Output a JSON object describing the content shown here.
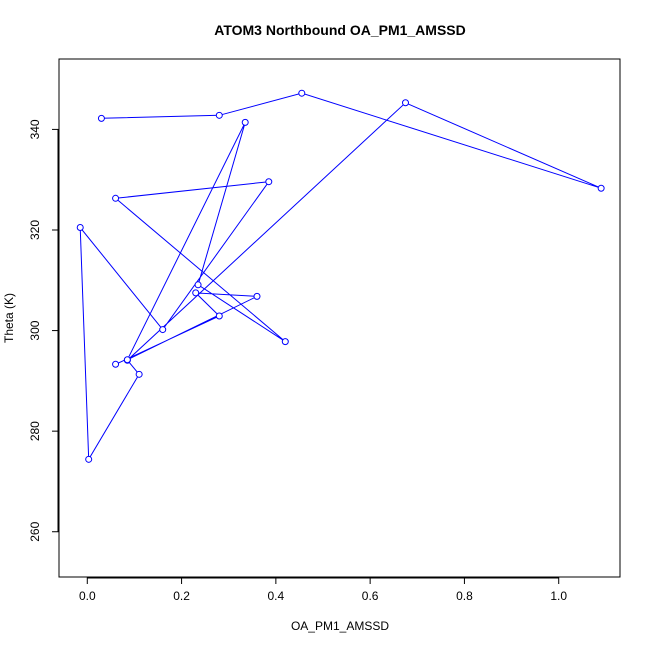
{
  "chart_data": {
    "type": "line",
    "title": "ATOM3 Northbound OA_PM1_AMSSD",
    "xlabel": "OA_PM1_AMSSD",
    "ylabel": "Theta (K)",
    "xlim": [
      -0.06,
      1.13
    ],
    "ylim": [
      251,
      354
    ],
    "x_ticks": [
      0.0,
      0.2,
      0.4,
      0.6,
      0.8,
      1.0
    ],
    "x_tick_labels": [
      "0.0",
      "0.2",
      "0.4",
      "0.6",
      "0.8",
      "1.0"
    ],
    "y_ticks": [
      260,
      280,
      300,
      320,
      340
    ],
    "y_tick_labels": [
      "260",
      "280",
      "300",
      "320",
      "340"
    ],
    "grid": false,
    "series": [
      {
        "color": "#0000ff",
        "x": [
          0.03,
          0.28,
          0.455,
          1.09,
          0.675,
          0.085,
          0.11,
          0.003,
          -0.015,
          0.16,
          0.385,
          0.06,
          0.42,
          0.235,
          0.335,
          0.085,
          0.36,
          0.23,
          0.28,
          0.06
        ],
        "y": [
          342.2,
          342.8,
          347.2,
          328.3,
          345.3,
          294.1,
          291.3,
          274.4,
          320.5,
          300.2,
          329.6,
          326.3,
          297.8,
          309.1,
          341.4,
          294.2,
          306.8,
          307.5,
          302.9,
          293.3
        ]
      }
    ]
  }
}
